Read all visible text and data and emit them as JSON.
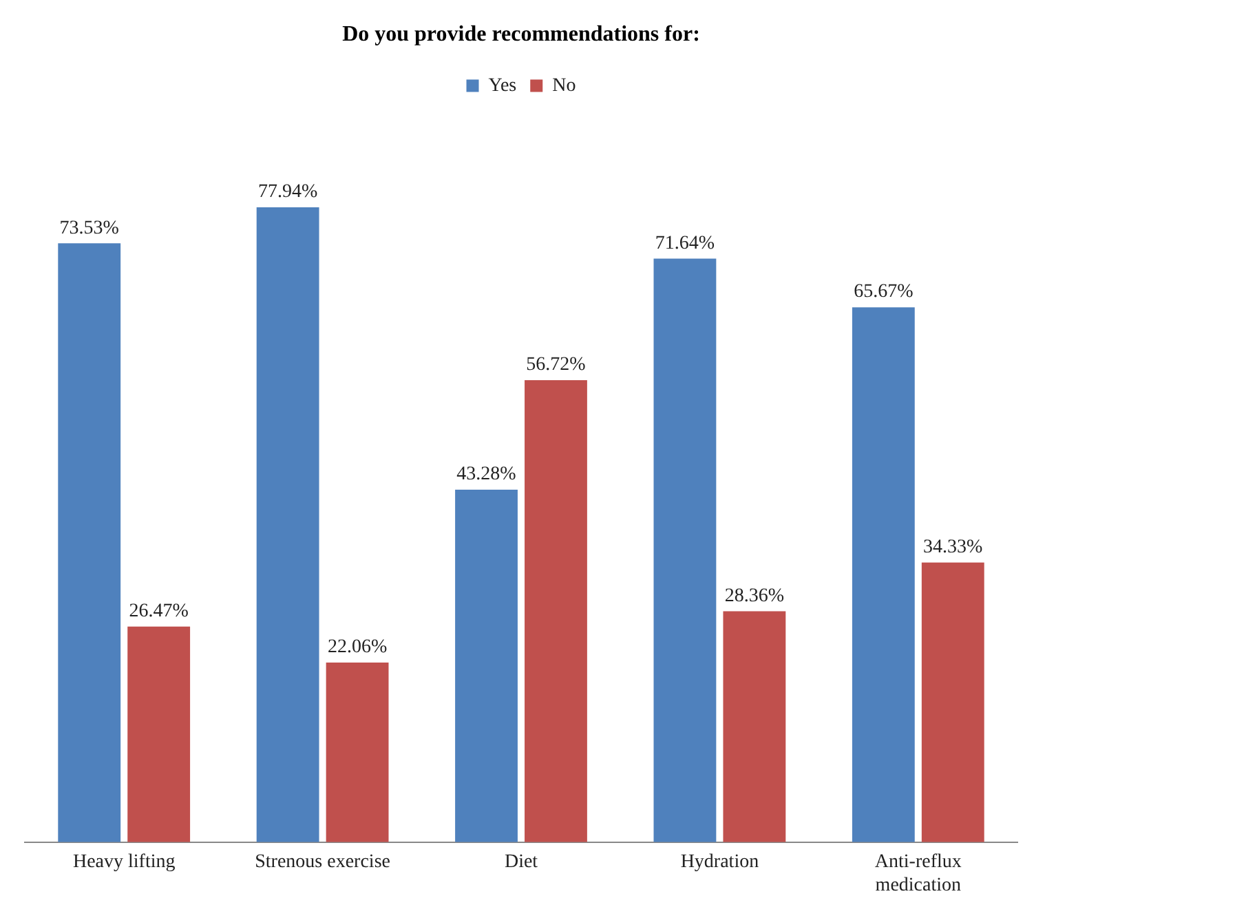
{
  "chart_data": {
    "type": "bar",
    "title": "Do you provide recommendations for:",
    "categories": [
      "Heavy lifting",
      "Strenous exercise",
      "Diet",
      "Hydration",
      "Anti-reflux medication"
    ],
    "series": [
      {
        "name": "Yes",
        "color": "#4f81bd",
        "values": [
          73.53,
          77.94,
          43.28,
          71.64,
          65.67
        ],
        "value_labels": [
          "73.53%",
          "77.94%",
          "43.28%",
          "71.64%",
          "65.67%"
        ]
      },
      {
        "name": "No",
        "color": "#c0504d",
        "values": [
          26.47,
          22.06,
          56.72,
          28.36,
          34.33
        ],
        "value_labels": [
          "26.47%",
          "22.06%",
          "56.72%",
          "28.36%",
          "34.33%"
        ]
      }
    ],
    "legend": "top"
  }
}
